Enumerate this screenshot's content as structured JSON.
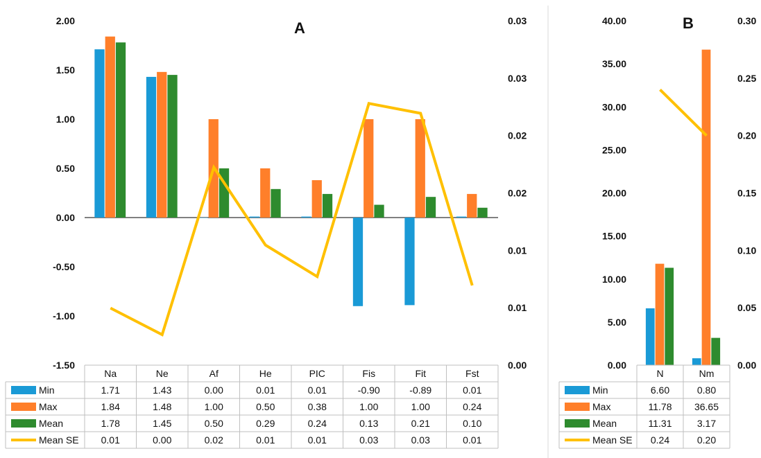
{
  "chart_data": [
    {
      "type": "bar",
      "title": "A",
      "categories": [
        "Na",
        "Ne",
        "Af",
        "He",
        "PIC",
        "Fis",
        "Fit",
        "Fst"
      ],
      "ylim": [
        -1.5,
        2.0
      ],
      "y_ticks": [
        "-1.50",
        "-1.00",
        "-0.50",
        "0.00",
        "0.50",
        "1.00",
        "1.50",
        "2.00"
      ],
      "y2lim": [
        0,
        0.035
      ],
      "y2_ticks": [
        "0.00",
        "0.01",
        "0.01",
        "0.02",
        "0.02",
        "0.03",
        "0.03"
      ],
      "series": [
        {
          "name": "Min",
          "type": "bar",
          "axis": "left",
          "color": "#1A9AD6",
          "values": [
            1.71,
            1.43,
            0.0,
            0.01,
            0.01,
            -0.9,
            -0.89,
            0.01
          ]
        },
        {
          "name": "Max",
          "type": "bar",
          "axis": "left",
          "color": "#FF7F2A",
          "values": [
            1.84,
            1.48,
            1.0,
            0.5,
            0.38,
            1.0,
            1.0,
            0.24
          ]
        },
        {
          "name": "Mean",
          "type": "bar",
          "axis": "left",
          "color": "#2E8B2E",
          "values": [
            1.78,
            1.45,
            0.5,
            0.29,
            0.24,
            0.13,
            0.21,
            0.1
          ]
        },
        {
          "name": "Mean SE",
          "type": "line",
          "axis": "right",
          "color": "#FFC000",
          "values": [
            0.01,
            0.0,
            0.02,
            0.01,
            0.01,
            0.03,
            0.03,
            0.01
          ],
          "line_values": [
            0.0058,
            0.0031,
            0.0201,
            0.0122,
            0.009,
            0.0266,
            0.0256,
            0.0081
          ]
        }
      ],
      "grid": false,
      "legend": "table-below"
    },
    {
      "type": "bar",
      "title": "B",
      "categories": [
        "N",
        "Nm"
      ],
      "ylim": [
        0,
        40
      ],
      "y_ticks": [
        "0.00",
        "5.00",
        "10.00",
        "15.00",
        "20.00",
        "25.00",
        "30.00",
        "35.00",
        "40.00"
      ],
      "y2lim": [
        0,
        0.3
      ],
      "y2_ticks": [
        "0.00",
        "0.05",
        "0.10",
        "0.15",
        "0.20",
        "0.25",
        "0.30"
      ],
      "series": [
        {
          "name": "Min",
          "type": "bar",
          "axis": "left",
          "color": "#1A9AD6",
          "values": [
            6.6,
            0.8
          ]
        },
        {
          "name": "Max",
          "type": "bar",
          "axis": "left",
          "color": "#FF7F2A",
          "values": [
            11.78,
            36.65
          ]
        },
        {
          "name": "Mean",
          "type": "bar",
          "axis": "left",
          "color": "#2E8B2E",
          "values": [
            11.31,
            3.17
          ]
        },
        {
          "name": "Mean SE",
          "type": "line",
          "axis": "right",
          "color": "#FFC000",
          "values": [
            0.24,
            0.2
          ]
        }
      ],
      "grid": false,
      "legend": "table-below"
    }
  ]
}
